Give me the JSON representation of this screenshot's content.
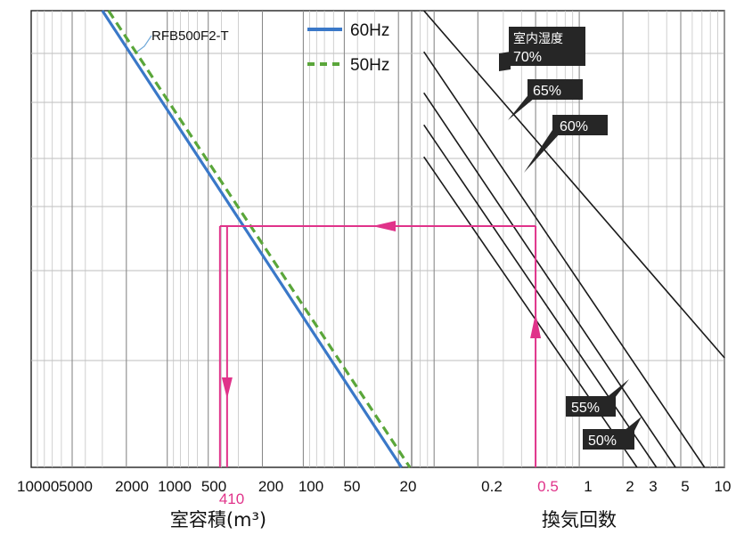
{
  "chart_data": {
    "type": "line",
    "title": "",
    "left_panel": {
      "xlabel": "室容積(m³)",
      "x_scale": "log-reversed",
      "xlim": [
        10000,
        16
      ],
      "x_ticks": [
        "10000",
        "5000",
        "2000",
        "1000",
        "500",
        "200",
        "100",
        "50",
        "20"
      ],
      "highlight_tick": "410",
      "series": [
        {
          "name": "60Hz",
          "color": "#3a78c8",
          "style": "solid",
          "points": [
            [
              3000,
              5.0
            ],
            [
              19,
              0.0
            ]
          ]
        },
        {
          "name": "50Hz",
          "color": "#5aa63a",
          "style": "dashed",
          "points": [
            [
              2700,
              5.0
            ],
            [
              16.5,
              0.0
            ]
          ]
        }
      ],
      "model_label": "RFB500F2-T"
    },
    "right_panel": {
      "xlabel": "換気回数",
      "x_scale": "log",
      "xlim": [
        0.07,
        10
      ],
      "x_ticks": [
        "0.2",
        "0.5",
        "1",
        "2",
        "3",
        "5",
        "10"
      ],
      "highlight_tick": "0.5",
      "humidity_title": "室内湿度",
      "humidity_lines": [
        {
          "label": "70%",
          "points": [
            [
              0.085,
              5.0
            ],
            [
              10,
              1.2
            ]
          ]
        },
        {
          "label": "65%",
          "points": [
            [
              0.085,
              4.55
            ],
            [
              7.3,
              0.0
            ]
          ]
        },
        {
          "label": "60%",
          "points": [
            [
              0.085,
              4.1
            ],
            [
              4.6,
              0.0
            ]
          ]
        },
        {
          "label": "55%",
          "points": [
            [
              0.085,
              3.75
            ],
            [
              3.4,
              0.0
            ]
          ]
        },
        {
          "label": "50%",
          "points": [
            [
              0.085,
              3.4
            ],
            [
              2.5,
              0.0
            ]
          ]
        }
      ]
    },
    "example_path": {
      "color": "#e0338a",
      "air_change": 0.5,
      "room_volume": 410
    }
  }
}
